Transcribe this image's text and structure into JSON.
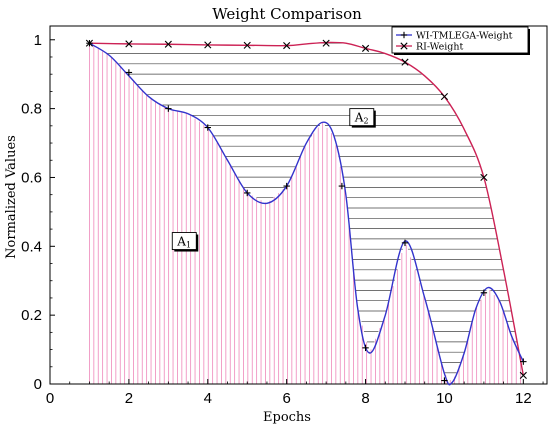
{
  "chart_data": {
    "type": "line",
    "title": "Weight Comparison",
    "xlabel": "Epochs",
    "ylabel": "Normalized Values",
    "xlim": [
      0,
      12.6
    ],
    "ylim": [
      0,
      1.04
    ],
    "xticks": [
      0,
      2,
      4,
      6,
      8,
      10,
      12
    ],
    "yticks": [
      0,
      0.2,
      0.4,
      0.6,
      0.8,
      1
    ],
    "legend_position": "top-right",
    "series": [
      {
        "name": "WI-TMLEGA-Weight",
        "color": "#3333cc",
        "marker": "plus",
        "x": [
          1,
          2,
          3,
          4,
          5,
          6,
          7.4,
          8,
          9,
          10,
          11,
          12
        ],
        "y": [
          0.99,
          0.905,
          0.8,
          0.745,
          0.555,
          0.575,
          0.575,
          0.105,
          0.41,
          0.01,
          0.265,
          0.065
        ],
        "curve_x": [
          1,
          1.5,
          2,
          2.5,
          3,
          3.5,
          4,
          4.5,
          5,
          5.5,
          6,
          6.5,
          6.9,
          7.2,
          7.5,
          7.8,
          8.1,
          8.5,
          9,
          9.5,
          10,
          10.2,
          10.5,
          10.8,
          11.1,
          11.4,
          11.7,
          12
        ],
        "curve_y": [
          0.99,
          0.955,
          0.895,
          0.835,
          0.8,
          0.785,
          0.745,
          0.65,
          0.555,
          0.525,
          0.575,
          0.7,
          0.76,
          0.72,
          0.55,
          0.22,
          0.09,
          0.2,
          0.415,
          0.25,
          0.03,
          0.005,
          0.09,
          0.22,
          0.28,
          0.24,
          0.14,
          0.065
        ]
      },
      {
        "name": "RI-Weight",
        "color": "#cc2255",
        "marker": "cross",
        "x": [
          1,
          2,
          3,
          4,
          5,
          6,
          7,
          8,
          9,
          10,
          11,
          12
        ],
        "y": [
          0.99,
          0.988,
          0.987,
          0.985,
          0.984,
          0.983,
          0.99,
          0.975,
          0.935,
          0.835,
          0.6,
          0.025
        ],
        "curve_x": [
          1,
          2,
          3,
          4,
          5,
          6,
          6.5,
          7,
          7.5,
          8,
          8.5,
          9,
          9.5,
          10,
          10.5,
          11,
          11.5,
          12
        ],
        "curve_y": [
          0.99,
          0.988,
          0.987,
          0.985,
          0.984,
          0.983,
          0.988,
          0.992,
          0.99,
          0.975,
          0.96,
          0.935,
          0.895,
          0.835,
          0.74,
          0.6,
          0.33,
          0.025
        ]
      }
    ],
    "annotations": [
      {
        "label": "A",
        "subscript": "1",
        "x": 3.1,
        "y": 0.44
      },
      {
        "label": "A",
        "subscript": "2",
        "x": 7.6,
        "y": 0.8
      }
    ]
  }
}
